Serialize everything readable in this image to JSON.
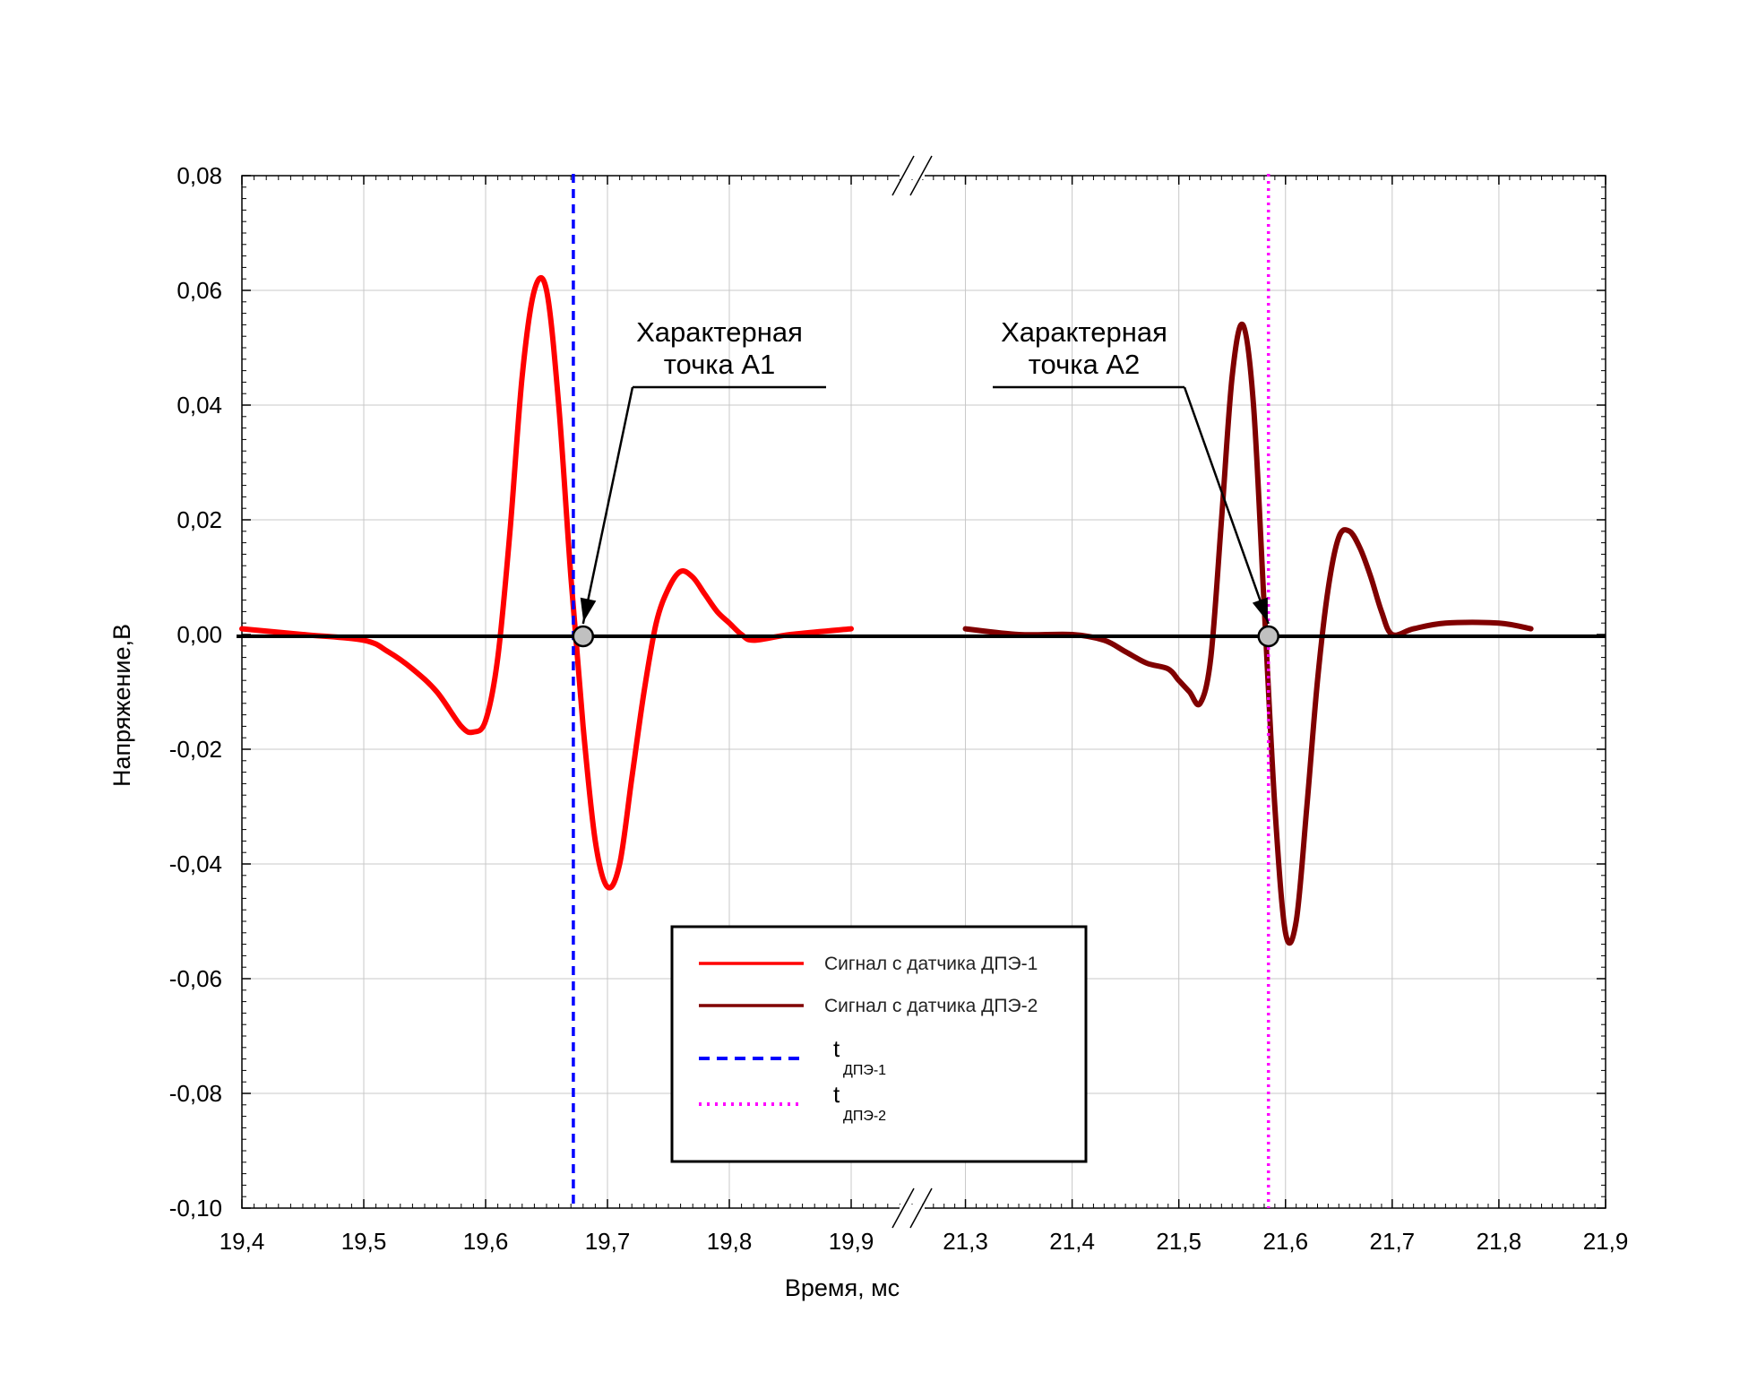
{
  "chart_data": {
    "type": "line",
    "xlabel": "Время, мс",
    "ylabel": "Напряжение,В",
    "ylim": [
      -0.1,
      0.08
    ],
    "y_ticks": [
      "0,08",
      "0,06",
      "0,04",
      "0,02",
      "0,00",
      "-0,02",
      "-0,04",
      "-0,06",
      "-0,08",
      "-0,10"
    ],
    "y_tick_values": [
      0.08,
      0.06,
      0.04,
      0.02,
      0.0,
      -0.02,
      -0.04,
      -0.06,
      -0.08,
      -0.1
    ],
    "x_axis_break": true,
    "x_segments": [
      {
        "xlim": [
          19.4,
          19.95
        ],
        "ticks": [
          "19,4",
          "19,5",
          "19,6",
          "19,7",
          "19,8",
          "19,9"
        ],
        "tick_values": [
          19.4,
          19.5,
          19.6,
          19.7,
          19.8,
          19.9
        ]
      },
      {
        "xlim": [
          21.25,
          21.9
        ],
        "ticks": [
          "21,3",
          "21,4",
          "21,5",
          "21,6",
          "21,7",
          "21,8",
          "21,9"
        ],
        "tick_values": [
          21.3,
          21.4,
          21.5,
          21.6,
          21.7,
          21.8,
          21.9
        ]
      }
    ],
    "grid": true,
    "series": [
      {
        "name": "Сигнал с датчика ДПЭ-1",
        "color": "#ff0000",
        "style": "solid",
        "x": [
          19.4,
          19.45,
          19.5,
          19.52,
          19.54,
          19.56,
          19.58,
          19.59,
          19.6,
          19.61,
          19.62,
          19.63,
          19.64,
          19.65,
          19.66,
          19.67,
          19.68,
          19.69,
          19.7,
          19.71,
          19.72,
          19.73,
          19.74,
          19.75,
          19.76,
          19.77,
          19.78,
          19.79,
          19.8,
          19.81,
          19.82,
          19.85,
          19.9
        ],
        "y": [
          0.001,
          0.0,
          -0.001,
          -0.003,
          -0.006,
          -0.01,
          -0.016,
          -0.017,
          -0.015,
          -0.004,
          0.018,
          0.045,
          0.06,
          0.06,
          0.04,
          0.01,
          -0.016,
          -0.036,
          -0.044,
          -0.04,
          -0.025,
          -0.01,
          0.002,
          0.008,
          0.011,
          0.01,
          0.007,
          0.004,
          0.002,
          0.0,
          -0.001,
          0.0,
          0.001
        ]
      },
      {
        "name": "Сигнал с датчика ДПЭ-2",
        "color": "#800000",
        "style": "solid",
        "x": [
          21.3,
          21.35,
          21.4,
          21.43,
          21.45,
          21.47,
          21.49,
          21.5,
          21.51,
          21.52,
          21.53,
          21.54,
          21.55,
          21.56,
          21.57,
          21.58,
          21.59,
          21.6,
          21.61,
          21.62,
          21.63,
          21.64,
          21.65,
          21.66,
          21.67,
          21.68,
          21.69,
          21.7,
          21.72,
          21.75,
          21.8,
          21.83
        ],
        "y": [
          0.001,
          0.0,
          0.0,
          -0.001,
          -0.003,
          -0.005,
          -0.006,
          -0.008,
          -0.01,
          -0.012,
          -0.004,
          0.02,
          0.045,
          0.054,
          0.04,
          0.005,
          -0.03,
          -0.052,
          -0.05,
          -0.03,
          -0.008,
          0.008,
          0.017,
          0.018,
          0.015,
          0.01,
          0.004,
          0.0,
          0.001,
          0.002,
          0.002,
          0.001
        ]
      },
      {
        "name": "tДПЭ-1",
        "color": "#0000ff",
        "style": "dashed",
        "type": "vline",
        "x": 19.672
      },
      {
        "name": "tДПЭ-2",
        "color": "#ff00ff",
        "style": "dotted",
        "type": "vline",
        "x": 21.584
      }
    ],
    "zero_line": {
      "y": 0,
      "color": "#000000"
    },
    "annotations": [
      {
        "line1": "Характерная",
        "line2": "точка А1",
        "x": 19.68,
        "y": 0.0
      },
      {
        "line1": "Характерная",
        "line2": "точка А2",
        "x": 21.584,
        "y": 0.0
      }
    ],
    "legend": {
      "placement": "bottom-center",
      "entries": [
        {
          "label": "Сигнал с датчика ДПЭ-1",
          "color": "#ff0000",
          "style": "solid"
        },
        {
          "label": "Сигнал с датчика ДПЭ-2",
          "color": "#800000",
          "style": "solid"
        },
        {
          "label_main": "t",
          "label_sub": "ДПЭ-1",
          "color": "#0000ff",
          "style": "dashed"
        },
        {
          "label_main": "t",
          "label_sub": "ДПЭ-2",
          "color": "#ff00ff",
          "style": "dotted"
        }
      ]
    }
  }
}
